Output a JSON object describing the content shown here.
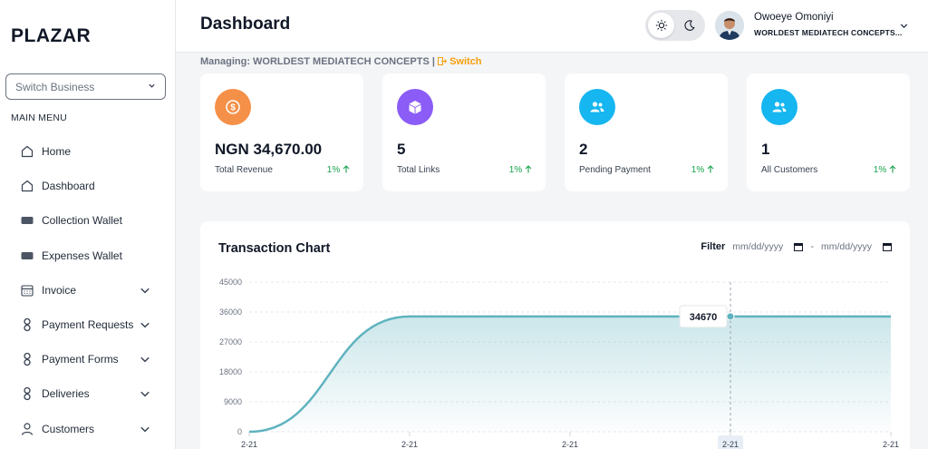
{
  "sidebar": {
    "logo": "PLAZAR",
    "switch_business": {
      "selected": "Switch Business"
    },
    "main_menu_label": "MAIN MENU",
    "items": [
      {
        "label": "Home",
        "icon": "home-icon",
        "has_chevron": false
      },
      {
        "label": "Dashboard",
        "icon": "home-icon",
        "has_chevron": false
      },
      {
        "label": "Collection Wallet",
        "icon": "wallet-icon",
        "has_chevron": false
      },
      {
        "label": "Expenses Wallet",
        "icon": "wallet-icon",
        "has_chevron": false
      },
      {
        "label": "Invoice",
        "icon": "calendar-icon",
        "has_chevron": true
      },
      {
        "label": "Payment Requests",
        "icon": "link-icon",
        "has_chevron": true
      },
      {
        "label": "Payment Forms",
        "icon": "link-icon",
        "has_chevron": true
      },
      {
        "label": "Deliveries",
        "icon": "link-icon",
        "has_chevron": true
      },
      {
        "label": "Customers",
        "icon": "user-icon",
        "has_chevron": true
      }
    ]
  },
  "header": {
    "title": "Dashboard",
    "user": {
      "name": "Owoeye Omoniyi",
      "business": "WORLDEST MEDIATECH CONCEPTS..."
    }
  },
  "managing": {
    "text": "Managing: WORLDEST MEDIATECH CONCEPTS |",
    "switch_label": "Switch"
  },
  "stats": [
    {
      "value": "NGN 34,670.00",
      "label": "Total Revenue",
      "trend": "1%",
      "color": "#f59048",
      "icon": "dollar-icon"
    },
    {
      "value": "5",
      "label": "Total Links",
      "trend": "1%",
      "color": "#8b5cf6",
      "icon": "cube-icon"
    },
    {
      "value": "2",
      "label": "Pending Payment",
      "trend": "1%",
      "color": "#16b6f0",
      "icon": "users-icon"
    },
    {
      "value": "1",
      "label": "All Customers",
      "trend": "1%",
      "color": "#16b6f0",
      "icon": "users-icon"
    }
  ],
  "chart_card": {
    "title": "Transaction Chart",
    "filter_label": "Filter",
    "date_from_placeholder": "mm/dd/yyyy",
    "date_to_placeholder": "mm/dd/yyyy",
    "date_separator": "-"
  },
  "chart_data": {
    "type": "area",
    "x": [
      "2-21",
      "2-21",
      "2-21",
      "2-21",
      "2-21"
    ],
    "series": [
      {
        "values": [
          0,
          34670,
          34670,
          34670,
          34670
        ]
      }
    ],
    "ylim": [
      0,
      45000
    ],
    "yticks": [
      0,
      9000,
      18000,
      27000,
      36000,
      45000
    ],
    "tooltip": {
      "label": "34670",
      "x_index": 3
    },
    "highlighted_x_index": 3,
    "grid": true,
    "color": "#5fb3bf"
  }
}
